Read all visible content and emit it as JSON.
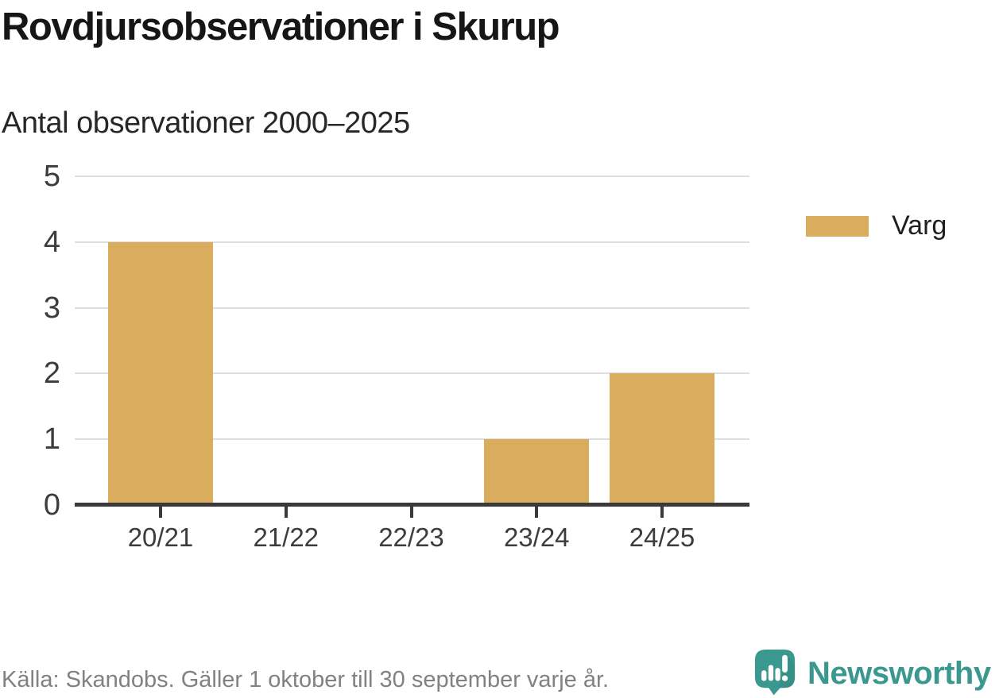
{
  "header": {
    "title": "Rovdjursobservationer i Skurup",
    "subtitle": "Antal observationer 2000–2025"
  },
  "chart_data": {
    "type": "bar",
    "categories": [
      "20/21",
      "21/22",
      "22/23",
      "23/24",
      "24/25"
    ],
    "series": [
      {
        "name": "Varg",
        "color": "#d9ac5e",
        "values": [
          4,
          0,
          0,
          1,
          2
        ]
      }
    ],
    "title": "Rovdjursobservationer i Skurup",
    "subtitle": "Antal observationer 2000–2025",
    "xlabel": "",
    "ylabel": "",
    "ylim": [
      0,
      5
    ],
    "y_ticks": [
      0,
      1,
      2,
      3,
      4,
      5
    ],
    "grid": "horizontal-light",
    "legend_position": "right"
  },
  "legend": {
    "items": [
      {
        "label": "Varg",
        "color": "#d9ac5e"
      }
    ]
  },
  "footer": {
    "source": "Källa: Skandobs. Gäller 1 oktober till 30 september varje år.",
    "brand": "Newsworthy"
  },
  "colors": {
    "bar": "#d9ac5e",
    "axis": "#3a3a3a",
    "gridline": "#dedede",
    "brand_teal": "#3b9890",
    "text_dark": "#161616",
    "text_gray": "#818181"
  }
}
